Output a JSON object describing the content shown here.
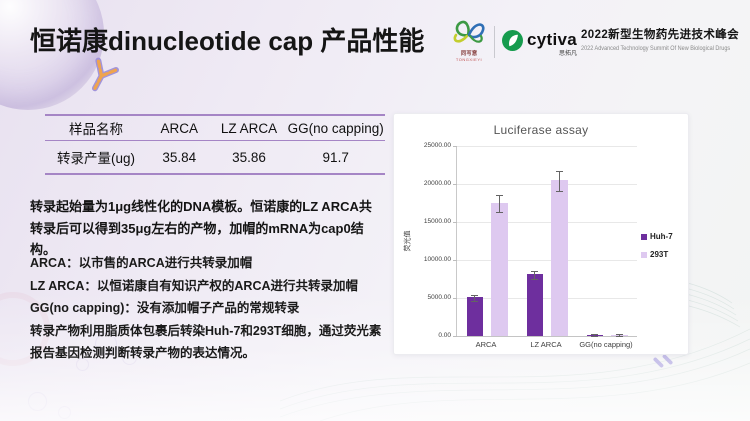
{
  "slide": {
    "title": "恒诺康dinucleotide cap 产品性能"
  },
  "header": {
    "partner_logo": {
      "label": "同写意",
      "sublabel": "TONGXIEYI"
    },
    "cytiva_logo": {
      "brand": "cytiva",
      "sublabel": "思拓凡"
    },
    "summit": {
      "title_cn": "2022新型生物药先进技术峰会",
      "title_en": "2022 Advanced Technology Summit Of New Biological Drugs"
    }
  },
  "table": {
    "headers": [
      "样品名称",
      "ARCA",
      "LZ ARCA",
      "GG(no capping)"
    ],
    "rows": [
      [
        "转录产量(ug)",
        "35.84",
        "35.86",
        "91.7"
      ]
    ]
  },
  "notes": {
    "summary": "转录起始量为1μg线性化的DNA模板。恒诺康的LZ ARCA共转录后可以得到35μg左右的产物，加帽的mRNA为cap0结构。",
    "items": [
      "ARCA：以市售的ARCA进行共转录加帽",
      "LZ ARCA：以恒诺康自有知识产权的ARCA进行共转录加帽",
      "GG(no capping)：没有添加帽子产品的常规转录",
      "转录产物利用脂质体包裹后转染Huh-7和293T细胞，通过荧光素报告基因检测判断转录产物的表达情况。"
    ]
  },
  "chart_data": {
    "type": "bar",
    "title": "Luciferase assay",
    "ylabel": "荧光值",
    "xlabel": "",
    "categories": [
      "ARCA",
      "LZ ARCA",
      "GG(no capping)"
    ],
    "series": [
      {
        "name": "Huh-7",
        "color": "#6E2F9E",
        "values": [
          5100,
          8100,
          160
        ],
        "errors": [
          300,
          450,
          60
        ]
      },
      {
        "name": "293T",
        "color": "#DEC9F0",
        "values": [
          17500,
          20500,
          160
        ],
        "errors": [
          1050,
          1250,
          60
        ]
      }
    ],
    "ylim": [
      0,
      25000
    ],
    "yticks": [
      "0.00",
      "5000.00",
      "10000.00",
      "15000.00",
      "20000.00",
      "25000.00"
    ],
    "grid": true,
    "legend_position": "right",
    "error_bars": true
  },
  "colors": {
    "accent_purple": "#6E2F9E",
    "light_purple": "#DEC9F0",
    "table_rule": "#A585C5",
    "cytiva_green": "#169B4E",
    "background": "#EDE8F3"
  }
}
